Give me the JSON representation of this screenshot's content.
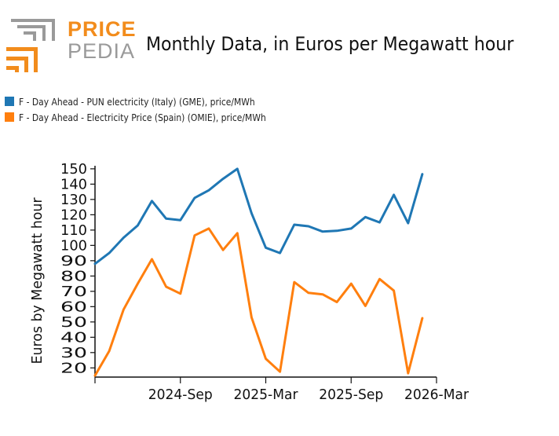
{
  "header": {
    "logo_word_1": "PRICE",
    "logo_word_2": "PEDIA",
    "title": "Monthly Data, in Euros per Megawatt hour"
  },
  "colors": {
    "italy": "#1f77b4",
    "spain": "#ff7f0e",
    "logo_orange": "#f28c1c",
    "logo_grey": "#9a9a9a"
  },
  "chart_data": {
    "type": "line",
    "title": "Monthly Data, in Euros per Megawatt hour",
    "xlabel": "",
    "ylabel": "Euros by Megawatt hour",
    "x": [
      "2024-03",
      "2024-04",
      "2024-05",
      "2024-06",
      "2024-07",
      "2024-08",
      "2024-09",
      "2024-10",
      "2024-11",
      "2024-12",
      "2025-01",
      "2025-02",
      "2025-03",
      "2025-04",
      "2025-05",
      "2025-06",
      "2025-07",
      "2025-08",
      "2025-09",
      "2025-10",
      "2025-11",
      "2025-12",
      "2026-01",
      "2026-02",
      "2026-03"
    ],
    "x_tick_labels": [
      {
        "x": "2024-09",
        "label": "2024-Sep"
      },
      {
        "x": "2025-03",
        "label": "2025-Mar"
      },
      {
        "x": "2025-09",
        "label": "2025-Sep"
      },
      {
        "x": "2026-03",
        "label": "2026-Mar"
      }
    ],
    "yticks": [
      20,
      30,
      40,
      50,
      60,
      70,
      80,
      90,
      100,
      110,
      120,
      130,
      140,
      150
    ],
    "ylim": [
      14,
      152
    ],
    "grid": false,
    "legend_position": "top-left",
    "series": [
      {
        "name": "F - Day Ahead - PUN electricity (Italy) (GME), price/MWh",
        "color": "#1f77b4",
        "values": [
          88,
          95,
          105,
          113,
          129,
          117.5,
          116.5,
          131,
          136,
          143.5,
          150,
          121,
          98.5,
          95,
          113.5,
          112.5,
          109,
          109.5,
          111,
          118.5,
          115,
          133,
          114.5,
          146.5,
          null
        ]
      },
      {
        "name": "F - Day Ahead - Electricity Price (Spain) (OMIE), price/MWh",
        "color": "#ff7f0e",
        "values": [
          15,
          31,
          58,
          75,
          91,
          73,
          68.5,
          106.5,
          111,
          97,
          108,
          53,
          26,
          17.5,
          76,
          69,
          68,
          63,
          75,
          60.5,
          78,
          70.5,
          16.5,
          52.5,
          null
        ]
      }
    ]
  }
}
